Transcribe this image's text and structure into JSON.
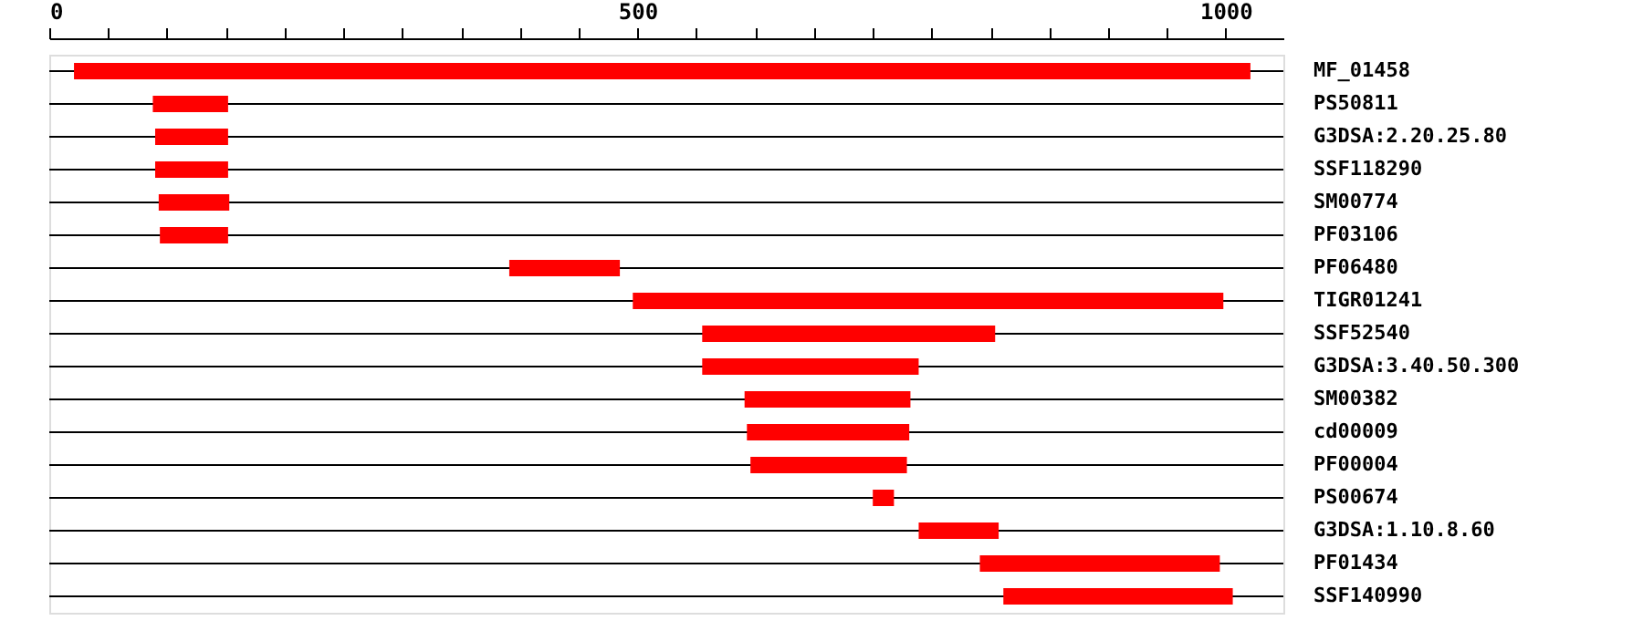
{
  "chart_data": {
    "type": "bar",
    "orientation": "horizontal",
    "color": "#ff0000",
    "categories": [
      "MF_01458",
      "PS50811",
      "G3DSA:2.20.25.80",
      "SSF118290",
      "SM00774",
      "PF03106",
      "PF06480",
      "TIGR01241",
      "SSF52540",
      "G3DSA:3.40.50.300",
      "SM00382",
      "cd00009",
      "PF00004",
      "PS00674",
      "G3DSA:1.10.8.60",
      "PF01434",
      "SSF140990"
    ],
    "base": [
      21,
      88,
      90,
      90,
      93,
      94,
      391,
      496,
      555,
      555,
      591,
      593,
      596,
      700,
      739,
      791,
      811
    ],
    "values": [
      1000,
      64,
      62,
      62,
      60,
      58,
      94,
      502,
      249,
      184,
      141,
      138,
      133,
      18,
      68,
      204,
      195
    ],
    "xlim": [
      0,
      1049
    ],
    "xticks": [
      0,
      {
        "value": 50,
        "label": null
      },
      {
        "value": 100,
        "label": null
      },
      {
        "value": 150,
        "label": null
      },
      {
        "value": 200,
        "label": null
      },
      {
        "value": 250,
        "label": null
      },
      {
        "value": 300,
        "label": null
      },
      {
        "value": 350,
        "label": null
      },
      {
        "value": 400,
        "label": null
      },
      {
        "value": 450,
        "label": null
      },
      500,
      {
        "value": 550,
        "label": null
      },
      {
        "value": 600,
        "label": null
      },
      {
        "value": 650,
        "label": null
      },
      {
        "value": 700,
        "label": null
      },
      {
        "value": 750,
        "label": null
      },
      {
        "value": 800,
        "label": null
      },
      {
        "value": 850,
        "label": null
      },
      {
        "value": 900,
        "label": null
      },
      {
        "value": 950,
        "label": null
      },
      1000
    ],
    "grid": false
  }
}
